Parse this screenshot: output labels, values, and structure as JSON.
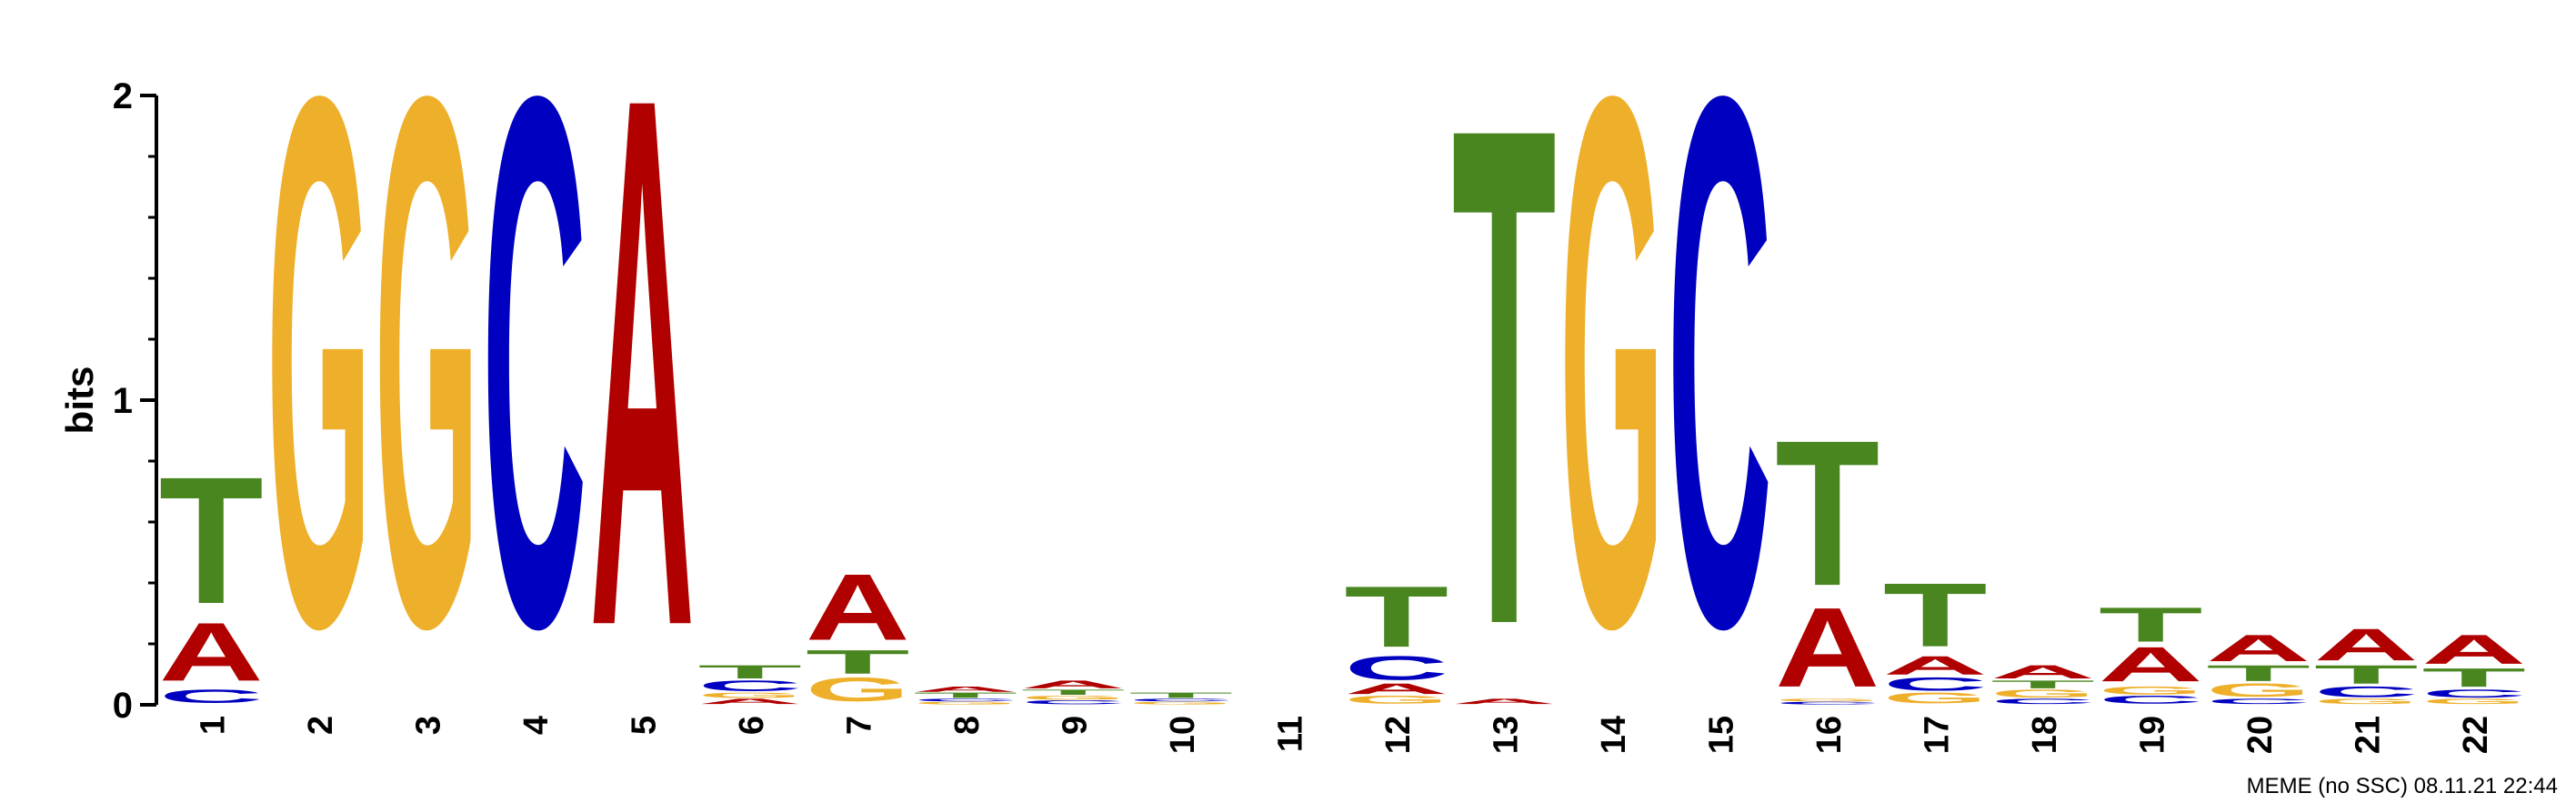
{
  "chart_data": {
    "type": "sequence-logo",
    "ylabel": "bits",
    "ylim": [
      0,
      2
    ],
    "yticks": [
      "0",
      "1",
      "2"
    ],
    "footer": "MEME (no SSC) 08.11.21 22:44",
    "colors": {
      "A": "#b00000",
      "C": "#0000c0",
      "G": "#eeaf2a",
      "T": "#4a8620"
    },
    "positions": [
      {
        "label": "1",
        "stack": [
          [
            "C",
            0.05
          ],
          [
            "A",
            0.22
          ],
          [
            "T",
            0.48
          ]
        ]
      },
      {
        "label": "2",
        "stack": [
          [
            "G",
            2.0
          ]
        ]
      },
      {
        "label": "3",
        "stack": [
          [
            "G",
            2.0
          ]
        ]
      },
      {
        "label": "4",
        "stack": [
          [
            "C",
            2.0
          ]
        ]
      },
      {
        "label": "5",
        "stack": [
          [
            "A",
            2.0
          ]
        ]
      },
      {
        "label": "6",
        "stack": [
          [
            "A",
            0.02
          ],
          [
            "G",
            0.02
          ],
          [
            "C",
            0.04
          ],
          [
            "T",
            0.05
          ]
        ]
      },
      {
        "label": "7",
        "stack": [
          [
            "G",
            0.09
          ],
          [
            "T",
            0.09
          ],
          [
            "A",
            0.25
          ]
        ]
      },
      {
        "label": "8",
        "stack": [
          [
            "G",
            0.01
          ],
          [
            "C",
            0.01
          ],
          [
            "T",
            0.02
          ],
          [
            "A",
            0.02
          ]
        ]
      },
      {
        "label": "9",
        "stack": [
          [
            "C",
            0.015
          ],
          [
            "G",
            0.015
          ],
          [
            "T",
            0.02
          ],
          [
            "A",
            0.03
          ]
        ]
      },
      {
        "label": "10",
        "stack": [
          [
            "G",
            0.01
          ],
          [
            "C",
            0.01
          ],
          [
            "T",
            0.02
          ]
        ]
      },
      {
        "label": "11",
        "stack": []
      },
      {
        "label": "12",
        "stack": [
          [
            "G",
            0.03
          ],
          [
            "A",
            0.04
          ],
          [
            "C",
            0.09
          ],
          [
            "T",
            0.23
          ]
        ]
      },
      {
        "label": "13",
        "stack": [
          [
            "A",
            0.02
          ],
          [
            "T",
            1.88
          ]
        ]
      },
      {
        "label": "14",
        "stack": [
          [
            "G",
            2.0
          ]
        ]
      },
      {
        "label": "15",
        "stack": [
          [
            "C",
            2.0
          ]
        ]
      },
      {
        "label": "16",
        "stack": [
          [
            "C",
            0.01
          ],
          [
            "G",
            0.01
          ],
          [
            "A",
            0.3
          ],
          [
            "T",
            0.55
          ]
        ]
      },
      {
        "label": "17",
        "stack": [
          [
            "G",
            0.04
          ],
          [
            "C",
            0.05
          ],
          [
            "A",
            0.07
          ],
          [
            "T",
            0.24
          ]
        ]
      },
      {
        "label": "18",
        "stack": [
          [
            "C",
            0.02
          ],
          [
            "G",
            0.03
          ],
          [
            "T",
            0.03
          ],
          [
            "A",
            0.05
          ]
        ]
      },
      {
        "label": "19",
        "stack": [
          [
            "C",
            0.03
          ],
          [
            "G",
            0.03
          ],
          [
            "A",
            0.13
          ],
          [
            "T",
            0.13
          ]
        ]
      },
      {
        "label": "20",
        "stack": [
          [
            "C",
            0.02
          ],
          [
            "G",
            0.05
          ],
          [
            "T",
            0.06
          ],
          [
            "A",
            0.1
          ]
        ]
      },
      {
        "label": "21",
        "stack": [
          [
            "G",
            0.02
          ],
          [
            "C",
            0.04
          ],
          [
            "T",
            0.07
          ],
          [
            "A",
            0.12
          ]
        ]
      },
      {
        "label": "22",
        "stack": [
          [
            "G",
            0.02
          ],
          [
            "C",
            0.03
          ],
          [
            "T",
            0.07
          ],
          [
            "A",
            0.11
          ]
        ]
      }
    ]
  }
}
